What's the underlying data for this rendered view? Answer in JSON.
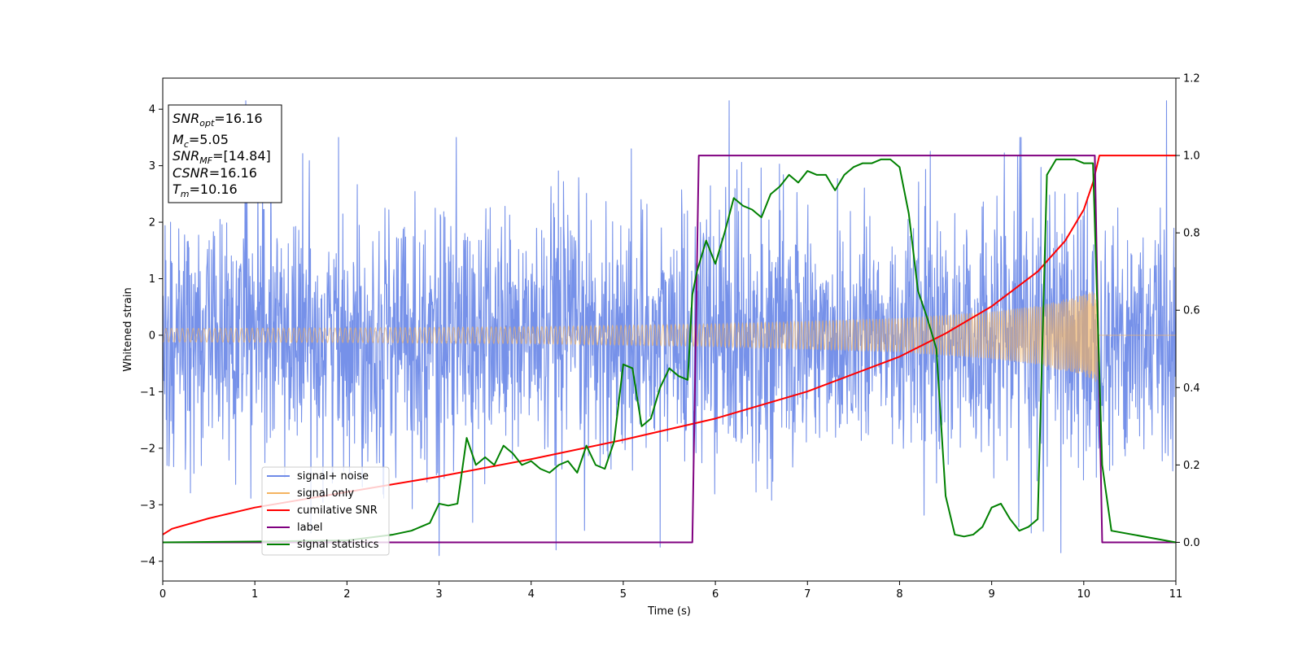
{
  "chart_data": {
    "type": "line",
    "xlabel": "Time (s)",
    "ylabel": "Whitened strain",
    "xlim": [
      0,
      11
    ],
    "ylim": [
      -4.35,
      4.55
    ],
    "ylim_right": [
      -0.1,
      1.2
    ],
    "x_ticks": [
      0,
      1,
      2,
      3,
      4,
      5,
      6,
      7,
      8,
      9,
      10,
      11
    ],
    "y_ticks": [
      -4,
      -3,
      -2,
      -1,
      0,
      1,
      2,
      3,
      4
    ],
    "y_ticks_right": [
      0.0,
      0.2,
      0.4,
      0.6,
      0.8,
      1.0,
      1.2
    ],
    "grid": false,
    "legend_position": "lower-left",
    "annotation": {
      "snr_opt": {
        "base": "SNR",
        "sub": "opt",
        "value": "=16.16"
      },
      "mc": {
        "base": "M",
        "sub": "c",
        "value": "=5.05"
      },
      "snr_mf": {
        "base": "SNR",
        "sub": "MF",
        "value": "=[14.84]"
      },
      "csnr": {
        "base": "CSNR",
        "value": "=16.16"
      },
      "tm": {
        "base": "T",
        "sub": "m",
        "value": "=10.16"
      }
    },
    "series": [
      {
        "name": "signal+ noise",
        "axis": "left",
        "color": "#6f8be8",
        "description": "white noise of std ~1.1 over 0-11 s with occasional spikes to about +4.2 and -3.9, plus the chirp signal",
        "noise_std": 1.1,
        "peaks": [
          [
            0.9,
            4.15
          ],
          [
            6.15,
            4.15
          ],
          [
            10.9,
            4.15
          ],
          [
            3.0,
            -3.9
          ],
          [
            9.75,
            -3.85
          ],
          [
            4.27,
            -3.8
          ],
          [
            5.4,
            -3.75
          ]
        ]
      },
      {
        "name": "signal only",
        "axis": "left",
        "color": "#f5b461",
        "description": "chirp whose envelope grows from ~0.12 at t=0 to ~0.85 at t=10.16 s, then zero",
        "envelope": {
          "x": [
            0,
            2,
            4,
            6,
            8,
            9,
            9.5,
            10,
            10.16
          ],
          "y": [
            0.12,
            0.13,
            0.15,
            0.2,
            0.3,
            0.42,
            0.52,
            0.72,
            0.85
          ]
        },
        "merger_time": 10.16
      },
      {
        "name": "cumilative SNR",
        "axis": "right",
        "color": "#ff0000",
        "x": [
          0,
          0.1,
          0.5,
          1,
          2,
          3,
          4,
          5,
          6,
          7,
          8,
          8.5,
          9,
          9.5,
          9.8,
          10,
          10.1,
          10.17,
          11
        ],
        "y": [
          0.02,
          0.035,
          0.062,
          0.09,
          0.13,
          0.17,
          0.215,
          0.265,
          0.32,
          0.39,
          0.48,
          0.54,
          0.61,
          0.7,
          0.78,
          0.86,
          0.93,
          1.0,
          1.0
        ]
      },
      {
        "name": "label",
        "axis": "right",
        "color": "#800080",
        "x": [
          0,
          5.75,
          5.82,
          10.12,
          10.2,
          11
        ],
        "y": [
          0,
          0,
          1,
          1,
          0,
          0
        ]
      },
      {
        "name": "signal statistics",
        "axis": "right",
        "color": "#008000",
        "x": [
          0,
          1,
          2,
          2.5,
          2.7,
          2.9,
          3.0,
          3.1,
          3.2,
          3.3,
          3.4,
          3.5,
          3.6,
          3.7,
          3.8,
          3.9,
          4.0,
          4.1,
          4.2,
          4.3,
          4.4,
          4.5,
          4.6,
          4.7,
          4.8,
          4.9,
          5.0,
          5.1,
          5.2,
          5.3,
          5.4,
          5.5,
          5.6,
          5.7,
          5.75,
          5.8,
          5.9,
          6.0,
          6.1,
          6.2,
          6.3,
          6.4,
          6.5,
          6.6,
          6.7,
          6.8,
          6.9,
          7.0,
          7.1,
          7.2,
          7.3,
          7.4,
          7.5,
          7.6,
          7.7,
          7.8,
          7.9,
          8.0,
          8.1,
          8.2,
          8.3,
          8.4,
          8.5,
          8.6,
          8.7,
          8.8,
          8.9,
          9.0,
          9.1,
          9.2,
          9.3,
          9.4,
          9.5,
          9.6,
          9.7,
          9.8,
          9.9,
          10.0,
          10.1,
          10.2,
          10.3,
          11
        ],
        "y": [
          0.0,
          0.002,
          0.005,
          0.02,
          0.03,
          0.05,
          0.1,
          0.095,
          0.1,
          0.27,
          0.2,
          0.22,
          0.2,
          0.25,
          0.23,
          0.2,
          0.21,
          0.19,
          0.18,
          0.2,
          0.21,
          0.18,
          0.25,
          0.2,
          0.19,
          0.26,
          0.46,
          0.45,
          0.3,
          0.32,
          0.4,
          0.45,
          0.43,
          0.42,
          0.64,
          0.7,
          0.78,
          0.72,
          0.8,
          0.89,
          0.87,
          0.86,
          0.84,
          0.9,
          0.92,
          0.95,
          0.93,
          0.96,
          0.95,
          0.95,
          0.91,
          0.95,
          0.97,
          0.98,
          0.98,
          0.99,
          0.99,
          0.97,
          0.85,
          0.65,
          0.58,
          0.5,
          0.12,
          0.02,
          0.015,
          0.02,
          0.04,
          0.09,
          0.1,
          0.06,
          0.03,
          0.04,
          0.06,
          0.95,
          0.99,
          0.99,
          0.99,
          0.98,
          0.98,
          0.2,
          0.03,
          0.0
        ]
      }
    ]
  }
}
